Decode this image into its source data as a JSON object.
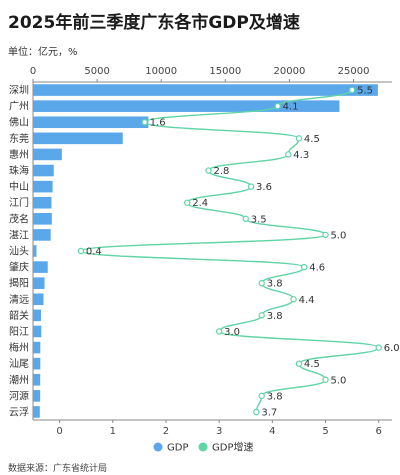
{
  "header": {
    "title": "2025年前三季度广东各市GDP及增速",
    "unit": "单位：亿元，%"
  },
  "footer": {
    "source": "数据来源：广东省统计局"
  },
  "colors": {
    "bar": "#5aa7ea",
    "line": "#5fd4a5"
  },
  "chart_data": {
    "type": "bar",
    "orientation": "horizontal",
    "categories": [
      "深圳",
      "广州",
      "佛山",
      "东莞",
      "惠州",
      "珠海",
      "中山",
      "江门",
      "茂名",
      "湛江",
      "汕头",
      "肇庆",
      "揭阳",
      "清远",
      "韶关",
      "阳江",
      "梅州",
      "汕尾",
      "潮州",
      "河源",
      "云浮"
    ],
    "series": [
      {
        "name": "GDP",
        "type": "bar",
        "axis": "top",
        "values": [
          26900,
          23900,
          9000,
          7000,
          2250,
          1620,
          1530,
          1440,
          1470,
          1380,
          270,
          1150,
          900,
          820,
          620,
          650,
          570,
          570,
          560,
          560,
          530
        ]
      },
      {
        "name": "GDP增速",
        "type": "line",
        "axis": "bottom",
        "values": [
          5.5,
          4.1,
          1.6,
          4.5,
          4.3,
          2.8,
          3.6,
          2.4,
          3.5,
          5.0,
          0.4,
          4.6,
          3.8,
          4.4,
          3.8,
          3.0,
          6.0,
          4.5,
          5.0,
          3.8,
          3.7
        ]
      }
    ],
    "data_labels": [
      "5.5",
      "4.1",
      "1.6",
      "4.5",
      "4.3",
      "2.8",
      "3.6",
      "2.4",
      "3.5",
      "5.0",
      "0.4",
      "4.6",
      "3.8",
      "4.4",
      "3.8",
      "3.0",
      "6.0",
      "4.5",
      "5.0",
      "3.8",
      "3.7"
    ],
    "x_top": {
      "ticks": [
        "0",
        "5000",
        "10000",
        "15000",
        "20000",
        "25000"
      ],
      "tick_values": [
        0,
        5000,
        10000,
        15000,
        20000,
        25000
      ],
      "min": 0,
      "max": 28000
    },
    "x_bottom": {
      "ticks": [
        "0",
        "1",
        "2",
        "3",
        "4",
        "5",
        "6"
      ],
      "tick_values": [
        0,
        1,
        2,
        3,
        4,
        5,
        6
      ],
      "min": -0.5,
      "max": 6.25
    },
    "legend": [
      "GDP",
      "GDP增速"
    ],
    "legend_position": "bottom"
  }
}
